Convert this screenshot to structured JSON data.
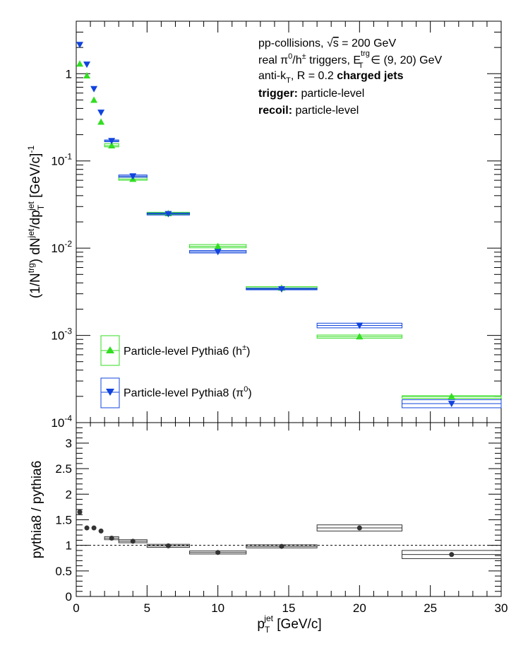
{
  "chart_data": [
    {
      "type": "scatter",
      "panel": "top",
      "y_scale": "log",
      "ylim": [
        0.0001,
        4
      ],
      "xlim": [
        0,
        30
      ],
      "ylabel": {
        "base": "(1/N",
        "sup1": "trg",
        "mid": ") dN",
        "sup2": "jet",
        "mid2": "/dp",
        "sub": "T",
        "sup3": "jet",
        "tail": " [GeV/c]",
        "sup4": "-1"
      },
      "y_ticks": [
        {
          "value": 0.0001,
          "base": "10",
          "exp": "-4"
        },
        {
          "value": 0.001,
          "base": "10",
          "exp": "-3"
        },
        {
          "value": 0.01,
          "base": "10",
          "exp": "-2"
        },
        {
          "value": 0.1,
          "base": "10",
          "exp": "-1"
        },
        {
          "value": 1,
          "label": "1"
        }
      ],
      "annotations": {
        "line1": {
          "text": "pp-collisions, ",
          "sqrt_arg": "s",
          "tail": " = 200 GeV"
        },
        "line2": {
          "a": "real π",
          "a_sup": "0",
          "b": "/h",
          "b_sup": "±",
          "c": " triggers, E",
          "c_sup": "trg",
          "c_sub": "T",
          "d": " ∈ (9, 20) GeV"
        },
        "line3": {
          "a": "anti-k",
          "a_sub": "T",
          "b": ", R = 0.2 ",
          "bold": "charged jets"
        },
        "line4": {
          "bold": "trigger:",
          "text": " particle-level"
        },
        "line5": {
          "bold": "recoil:",
          "text": " particle-level"
        }
      },
      "legend": {
        "placement": "bottom-left"
      },
      "series": [
        {
          "name": "Particle-level Pythia6 (h",
          "name_sup": "±",
          "name_tail": ")",
          "color": "#33dd22",
          "marker": "triangle-up",
          "points": [
            {
              "x": 0.25,
              "y": 1.3
            },
            {
              "x": 0.75,
              "y": 0.95
            },
            {
              "x": 1.25,
              "y": 0.5
            },
            {
              "x": 1.75,
              "y": 0.28
            },
            {
              "x": 2.5,
              "y": 0.15,
              "xlo": 2.0,
              "xhi": 3.0,
              "ylo": 0.145,
              "yhi": 0.158
            },
            {
              "x": 4.0,
              "y": 0.062,
              "xlo": 3.0,
              "xhi": 5.0,
              "ylo": 0.06,
              "yhi": 0.065
            },
            {
              "x": 6.5,
              "y": 0.025,
              "xlo": 5.0,
              "xhi": 8.0,
              "ylo": 0.0243,
              "yhi": 0.0258
            },
            {
              "x": 10.0,
              "y": 0.0105,
              "xlo": 8.0,
              "xhi": 12.0,
              "ylo": 0.0101,
              "yhi": 0.011
            },
            {
              "x": 14.5,
              "y": 0.0035,
              "xlo": 12.0,
              "xhi": 17.0,
              "ylo": 0.00338,
              "yhi": 0.00362
            },
            {
              "x": 20.0,
              "y": 0.00097,
              "xlo": 17.0,
              "xhi": 23.0,
              "ylo": 0.00093,
              "yhi": 0.00101
            },
            {
              "x": 26.5,
              "y": 0.0002,
              "xlo": 23.0,
              "xhi": 30.0,
              "ylo": 0.00019,
              "yhi": 0.000203
            }
          ]
        },
        {
          "name": "Particle-level Pythia8 (π",
          "name_sup": "0",
          "name_tail": ")",
          "color": "#1144dd",
          "marker": "triangle-down",
          "points": [
            {
              "x": 0.25,
              "y": 2.15
            },
            {
              "x": 0.75,
              "y": 1.28
            },
            {
              "x": 1.25,
              "y": 0.67
            },
            {
              "x": 1.75,
              "y": 0.36
            },
            {
              "x": 2.5,
              "y": 0.17,
              "xlo": 2.0,
              "xhi": 3.0,
              "ylo": 0.166,
              "yhi": 0.174
            },
            {
              "x": 4.0,
              "y": 0.067,
              "xlo": 3.0,
              "xhi": 5.0,
              "ylo": 0.065,
              "yhi": 0.069
            },
            {
              "x": 6.5,
              "y": 0.0247,
              "xlo": 5.0,
              "xhi": 8.0,
              "ylo": 0.024,
              "yhi": 0.0253
            },
            {
              "x": 10.0,
              "y": 0.0091,
              "xlo": 8.0,
              "xhi": 12.0,
              "ylo": 0.0088,
              "yhi": 0.0094
            },
            {
              "x": 14.5,
              "y": 0.0034,
              "xlo": 12.0,
              "xhi": 17.0,
              "ylo": 0.00333,
              "yhi": 0.00347
            },
            {
              "x": 20.0,
              "y": 0.0013,
              "xlo": 17.0,
              "xhi": 23.0,
              "ylo": 0.00122,
              "yhi": 0.00138
            },
            {
              "x": 26.5,
              "y": 0.000165,
              "xlo": 23.0,
              "xhi": 30.0,
              "ylo": 0.000148,
              "yhi": 0.000183
            }
          ]
        }
      ]
    },
    {
      "type": "scatter",
      "panel": "bottom",
      "xlim": [
        0,
        30
      ],
      "ylim": [
        0,
        3.4
      ],
      "ylabel": "pythia8 / pythia6",
      "xlabel": {
        "base": "p",
        "sub": "T",
        "sup": "jet",
        "tail": " [GeV/c]"
      },
      "x_ticks": [
        0,
        5,
        10,
        15,
        20,
        25,
        30
      ],
      "y_ticks": [
        {
          "value": 0,
          "label": "0"
        },
        {
          "value": 0.5,
          "label": "0.5"
        },
        {
          "value": 1,
          "label": "1"
        },
        {
          "value": 1.5,
          "label": "1.5"
        },
        {
          "value": 2,
          "label": "2"
        },
        {
          "value": 2.5,
          "label": "2.5"
        },
        {
          "value": 3,
          "label": "3"
        }
      ],
      "reference_line": 1.0,
      "series": [
        {
          "color": "#333333",
          "marker": "circle",
          "points": [
            {
              "x": 0.25,
              "y": 1.65
            },
            {
              "x": 0.75,
              "y": 1.34
            },
            {
              "x": 1.25,
              "y": 1.34
            },
            {
              "x": 1.75,
              "y": 1.28
            },
            {
              "x": 2.5,
              "y": 1.14,
              "xlo": 2.0,
              "xhi": 3.0,
              "ylo": 1.11,
              "yhi": 1.17
            },
            {
              "x": 4.0,
              "y": 1.08,
              "xlo": 3.0,
              "xhi": 5.0,
              "ylo": 1.05,
              "yhi": 1.11
            },
            {
              "x": 6.5,
              "y": 0.99,
              "xlo": 5.0,
              "xhi": 8.0,
              "ylo": 0.96,
              "yhi": 1.02
            },
            {
              "x": 10.0,
              "y": 0.86,
              "xlo": 8.0,
              "xhi": 12.0,
              "ylo": 0.83,
              "yhi": 0.89
            },
            {
              "x": 14.5,
              "y": 0.98,
              "xlo": 12.0,
              "xhi": 17.0,
              "ylo": 0.95,
              "yhi": 1.01
            },
            {
              "x": 20.0,
              "y": 1.34,
              "xlo": 17.0,
              "xhi": 23.0,
              "ylo": 1.28,
              "yhi": 1.4
            },
            {
              "x": 26.5,
              "y": 0.82,
              "xlo": 23.0,
              "xhi": 30.0,
              "ylo": 0.74,
              "yhi": 0.9
            }
          ]
        }
      ]
    }
  ]
}
